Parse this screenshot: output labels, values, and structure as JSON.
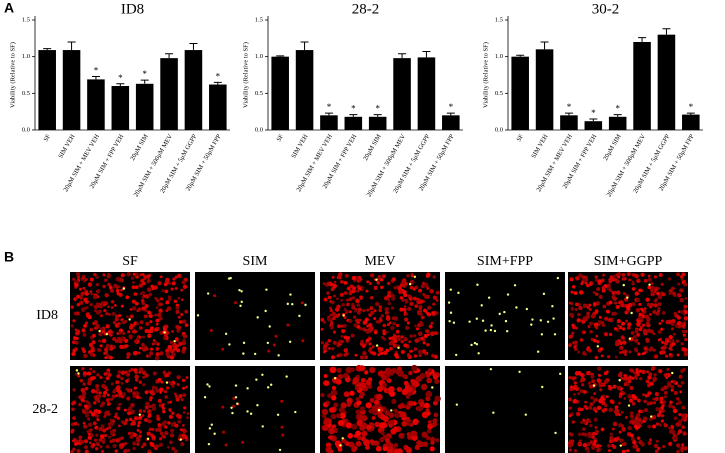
{
  "panel_a_label": "A",
  "chart_data": [
    {
      "type": "bar",
      "title": "ID8",
      "ylabel": "Viability (Relative to SF)",
      "categories": [
        "SF",
        "SIM VEH",
        "20μM SIM + MEV VEH",
        "20μM SIM + FPP VEH",
        "20μM SIM",
        "20μM SIM + 500μM MEV",
        "20μM SIM + 5μM GGPP",
        "20μM SIM + 50μM FPP"
      ],
      "values": [
        1.09,
        1.09,
        0.69,
        0.6,
        0.63,
        0.98,
        1.09,
        0.62
      ],
      "errors": [
        0.02,
        0.11,
        0.04,
        0.03,
        0.05,
        0.06,
        0.09,
        0.03
      ],
      "significant": [
        false,
        false,
        true,
        true,
        true,
        false,
        false,
        true
      ],
      "significance_label": "*",
      "color": "#000000",
      "ylim": [
        0,
        1.5
      ],
      "yticks": [
        {
          "value": 0,
          "label": "0.0"
        },
        0.5,
        {
          "value": 1,
          "label": "1.0"
        },
        1.5
      ]
    },
    {
      "type": "bar",
      "title": "28-2",
      "ylabel": "Viability (Relative to SF)",
      "categories": [
        "SF",
        "SIM VEH",
        "20μM SIM + MEV VEH",
        "20μM SIM + FPP VEH",
        "20μM SIM",
        "20μM SIM + 500μM MEV",
        "20μM SIM + 5μM GGPP",
        "20μM SIM + 50μM FPP"
      ],
      "values": [
        1.0,
        1.09,
        0.2,
        0.18,
        0.18,
        0.98,
        0.99,
        0.2
      ],
      "errors": [
        0.01,
        0.11,
        0.03,
        0.03,
        0.03,
        0.06,
        0.08,
        0.03
      ],
      "significant": [
        false,
        false,
        true,
        true,
        true,
        false,
        false,
        true
      ],
      "significance_label": "*",
      "color": "#000000",
      "ylim": [
        0,
        1.5
      ],
      "yticks": [
        {
          "value": 0,
          "label": "0.0"
        },
        0.5,
        {
          "value": 1,
          "label": "1.0"
        },
        1.5
      ]
    },
    {
      "type": "bar",
      "title": "30-2",
      "ylabel": "Viability (Relative to SF)",
      "categories": [
        "SF",
        "SIM VEH",
        "20μM SIM + MEV VEH",
        "20μM SIM + FPP VEH",
        "20μM SIM",
        "20μM SIM + 500μM MEV",
        "20μM SIM + 5μM GGPP",
        "20μM SIM + 50μM FPP"
      ],
      "values": [
        1.0,
        1.1,
        0.2,
        0.12,
        0.18,
        1.2,
        1.3,
        0.21
      ],
      "errors": [
        0.02,
        0.1,
        0.03,
        0.03,
        0.03,
        0.06,
        0.08,
        0.02
      ],
      "significant": [
        false,
        false,
        true,
        true,
        true,
        false,
        false,
        true
      ],
      "significance_label": "*",
      "color": "#000000",
      "ylim": [
        0,
        1.5
      ],
      "yticks": [
        {
          "value": 0,
          "label": "0.0"
        },
        0.5,
        {
          "value": 1,
          "label": "1.0"
        },
        1.5
      ]
    }
  ],
  "panel_b": {
    "label": "B",
    "columns": [
      "SF",
      "SIM",
      "MEV",
      "SIM+FPP",
      "SIM+GGPP"
    ],
    "rows": [
      "ID8",
      "28-2"
    ]
  }
}
